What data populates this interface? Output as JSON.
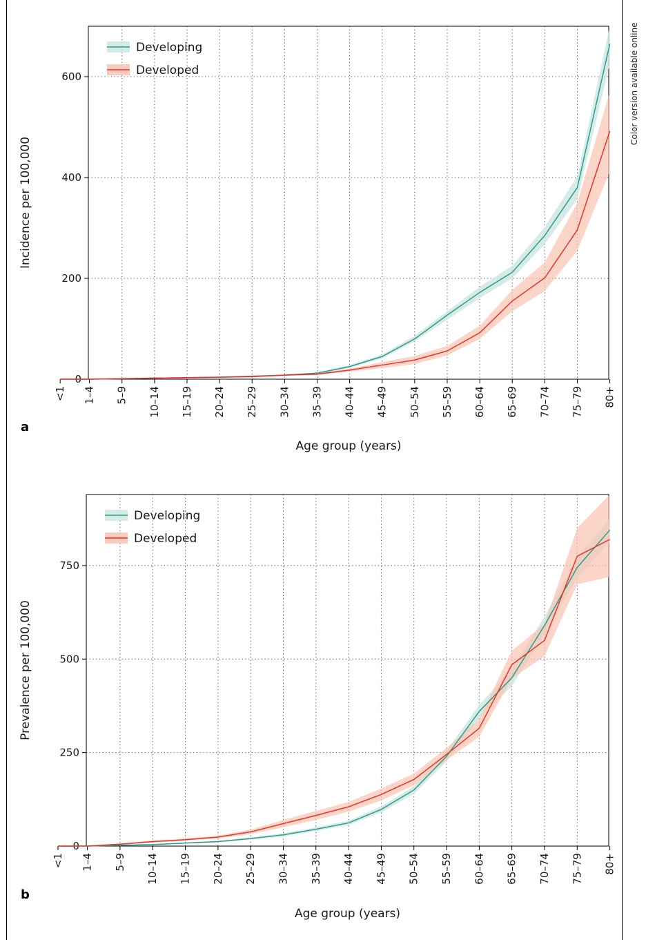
{
  "side_note": "Color version available online",
  "colors": {
    "developing": "#2a9d8f",
    "developing_band": "#cfe8e0",
    "developed": "#e8332a",
    "developed_band": "#f8c3b1",
    "grid": "#444444"
  },
  "chart_data": [
    {
      "type": "line",
      "panel_label": "a",
      "xlabel": "Age group (years)",
      "ylabel": "Incidence per 100,000",
      "categories": [
        "<1",
        "1–4",
        "5–9",
        "10–14",
        "15–19",
        "20–24",
        "25–29",
        "30–34",
        "35–39",
        "40–44",
        "45–49",
        "50–54",
        "55–59",
        "60–64",
        "65–69",
        "70–74",
        "75–79",
        "80+"
      ],
      "x": [
        -0.9,
        0,
        1,
        2,
        3,
        4,
        5,
        6,
        7,
        8,
        9,
        10,
        11,
        12,
        13,
        14,
        15,
        16
      ],
      "ylim": [
        0,
        700
      ],
      "yticks": [
        0,
        200,
        400,
        600
      ],
      "grid": true,
      "legend_position": "top-left",
      "series": [
        {
          "name": "Developing",
          "values": [
            0,
            0,
            1,
            2,
            3,
            4,
            6,
            8,
            12,
            25,
            45,
            80,
            127,
            172,
            212,
            285,
            380,
            665
          ],
          "lower": [
            0,
            0,
            0.8,
            1.6,
            2.5,
            3.4,
            5,
            7,
            10.5,
            22,
            41,
            75,
            118,
            161,
            200,
            268,
            357,
            625
          ],
          "upper": [
            0.2,
            0.2,
            1.2,
            2.4,
            3.5,
            4.6,
            7,
            9,
            13.5,
            28,
            49,
            86,
            135,
            183,
            225,
            302,
            402,
            700
          ]
        },
        {
          "name": "Developed",
          "values": [
            0,
            0,
            1,
            2,
            3,
            4,
            5,
            8,
            10,
            18,
            28,
            38,
            56,
            92,
            155,
            201,
            296,
            492
          ],
          "lower": [
            0,
            0,
            0.7,
            1.5,
            2.4,
            3.2,
            4,
            6.5,
            8,
            15,
            22,
            30,
            47,
            80,
            135,
            175,
            255,
            412
          ],
          "upper": [
            0.2,
            0.2,
            1.3,
            2.5,
            3.6,
            4.8,
            6,
            9.5,
            12,
            21,
            34,
            46,
            66,
            106,
            177,
            232,
            350,
            570
          ]
        }
      ]
    },
    {
      "type": "line",
      "panel_label": "b",
      "xlabel": "Age group (years)",
      "ylabel": "Prevalence per 100,000",
      "categories": [
        "<1",
        "1–4",
        "5–9",
        "10–14",
        "15–19",
        "20–24",
        "25–29",
        "30–34",
        "35–39",
        "40–44",
        "45–49",
        "50–54",
        "55–59",
        "60–64",
        "65–69",
        "70–74",
        "75–79",
        "80+"
      ],
      "x": [
        -0.9,
        0,
        1,
        2,
        3,
        4,
        5,
        6,
        7,
        8,
        9,
        10,
        11,
        12,
        13,
        14,
        15,
        16
      ],
      "ylim": [
        0,
        940
      ],
      "yticks": [
        0,
        250,
        500,
        750
      ],
      "grid": true,
      "legend_position": "top-left",
      "series": [
        {
          "name": "Developing",
          "values": [
            0,
            0,
            2,
            4,
            8,
            12,
            20,
            30,
            45,
            62,
            98,
            150,
            240,
            360,
            450,
            590,
            745,
            845
          ],
          "lower": [
            0,
            0,
            1.5,
            3,
            6.5,
            10,
            17,
            26,
            40,
            56,
            90,
            140,
            226,
            342,
            428,
            566,
            718,
            815
          ],
          "upper": [
            0,
            0,
            2.5,
            5,
            9.5,
            14,
            23,
            34,
            50,
            68,
            106,
            160,
            254,
            378,
            472,
            614,
            772,
            875
          ]
        },
        {
          "name": "Developed",
          "values": [
            0,
            0,
            5,
            12,
            17,
            24,
            38,
            60,
            82,
            105,
            138,
            178,
            245,
            315,
            485,
            550,
            775,
            820
          ],
          "lower": [
            0,
            0,
            3,
            9,
            14,
            20,
            32,
            50,
            70,
            92,
            122,
            162,
            230,
            292,
            448,
            508,
            700,
            720
          ],
          "upper": [
            0,
            0,
            7,
            15,
            20,
            28,
            44,
            70,
            94,
            118,
            154,
            194,
            262,
            340,
            522,
            594,
            850,
            940
          ]
        }
      ]
    }
  ]
}
